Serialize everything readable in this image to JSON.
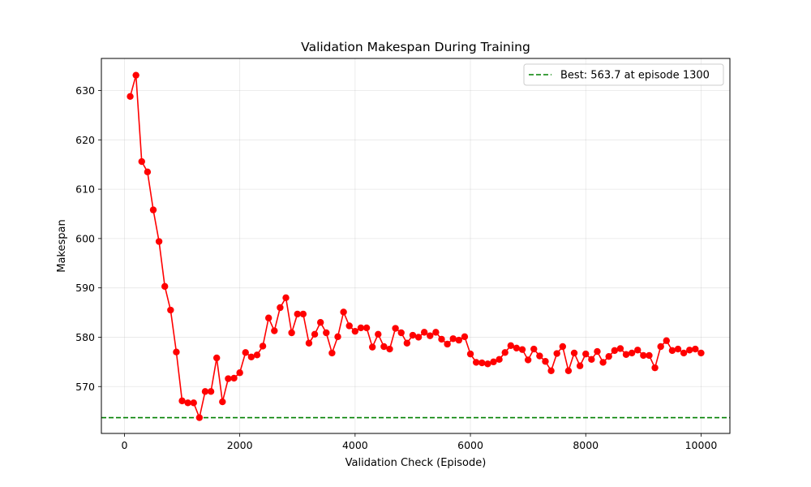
{
  "chart_data": {
    "type": "line",
    "title": "Validation Makespan During Training",
    "xlabel": "Validation Check (Episode)",
    "ylabel": "Makespan",
    "xlim": [
      -400,
      10500
    ],
    "ylim": [
      560.5,
      636.5
    ],
    "xticks": [
      0,
      2000,
      4000,
      6000,
      8000,
      10000
    ],
    "yticks": [
      570,
      580,
      590,
      600,
      610,
      620,
      630
    ],
    "grid": true,
    "legend_position": "top-right",
    "colors": {
      "series": "#ff0000",
      "best_line": "#008000"
    },
    "series": [
      {
        "x": [
          100,
          200,
          300,
          400,
          500,
          600,
          700,
          800,
          900,
          1000,
          1100,
          1200,
          1300,
          1400,
          1500,
          1600,
          1700,
          1800,
          1900,
          2000,
          2100,
          2200,
          2300,
          2400,
          2500,
          2600,
          2700,
          2800,
          2900,
          3000,
          3100,
          3200,
          3300,
          3400,
          3500,
          3600,
          3700,
          3800,
          3900,
          4000,
          4100,
          4200,
          4300,
          4400,
          4500,
          4600,
          4700,
          4800,
          4900,
          5000,
          5100,
          5200,
          5300,
          5400,
          5500,
          5600,
          5700,
          5800,
          5900,
          6000,
          6100,
          6200,
          6300,
          6400,
          6500,
          6600,
          6700,
          6800,
          6900,
          7000,
          7100,
          7200,
          7300,
          7400,
          7500,
          7600,
          7700,
          7800,
          7900,
          8000,
          8100,
          8200,
          8300,
          8400,
          8500,
          8600,
          8700,
          8800,
          8900,
          9000,
          9100,
          9200,
          9300,
          9400,
          9500,
          9600,
          9700,
          9800,
          9900,
          10000
        ],
        "values": [
          628.8,
          633.1,
          615.6,
          613.5,
          605.8,
          599.4,
          590.3,
          585.5,
          577.0,
          567.1,
          566.7,
          566.7,
          563.7,
          569.0,
          569.0,
          575.8,
          566.9,
          571.6,
          571.7,
          572.8,
          576.9,
          576.0,
          576.4,
          578.2,
          583.9,
          581.3,
          586.0,
          588.0,
          580.9,
          584.7,
          584.7,
          578.8,
          580.6,
          583.0,
          580.9,
          576.8,
          580.1,
          585.1,
          582.3,
          581.2,
          581.9,
          581.9,
          578.0,
          580.6,
          578.1,
          577.6,
          581.8,
          580.9,
          578.8,
          580.4,
          580.0,
          581.0,
          580.3,
          581.0,
          579.6,
          578.6,
          579.7,
          579.4,
          580.1,
          576.6,
          574.9,
          574.8,
          574.6,
          575.0,
          575.5,
          576.9,
          578.3,
          577.8,
          577.5,
          575.4,
          577.6,
          576.2,
          575.1,
          573.2,
          576.7,
          578.1,
          573.2,
          576.8,
          574.2,
          576.6,
          575.5,
          577.1,
          574.9,
          576.1,
          577.3,
          577.7,
          576.5,
          576.8,
          577.4,
          576.3,
          576.3,
          573.8,
          578.1,
          579.3,
          577.3,
          577.6,
          576.8,
          577.4,
          577.6,
          576.8
        ]
      }
    ],
    "reference_lines": [
      {
        "type": "horizontal",
        "y": 563.7,
        "style": "dashed",
        "label": "Best: 563.7 at episode 1300"
      }
    ]
  }
}
